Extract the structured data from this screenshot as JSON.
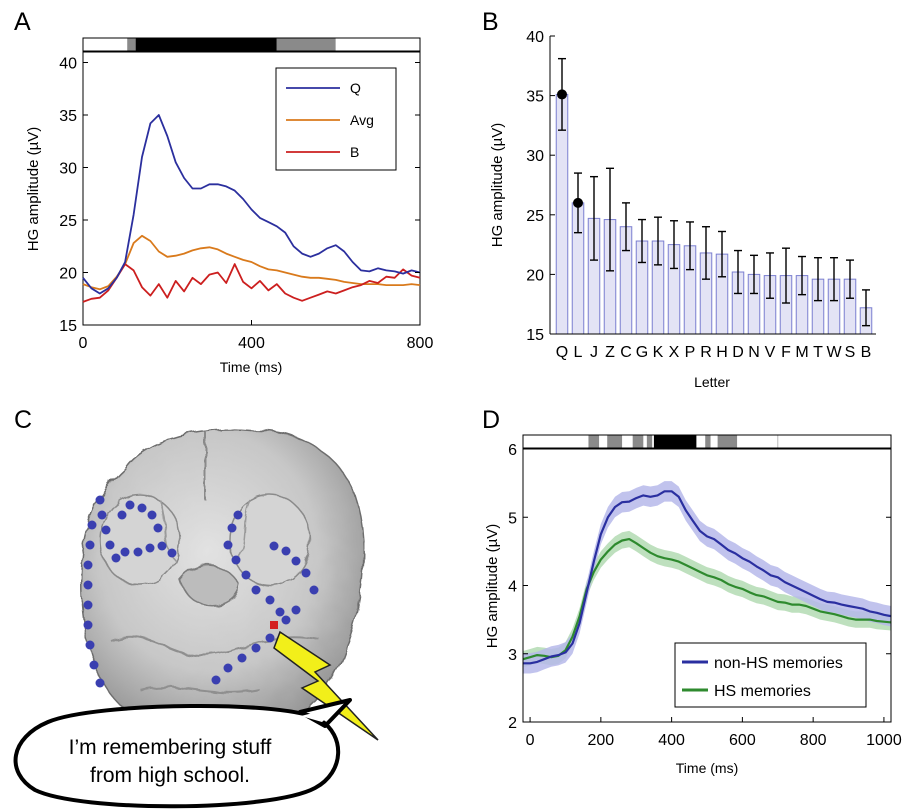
{
  "panels": {
    "A": "A",
    "B": "B",
    "C": "C",
    "D": "D"
  },
  "colors": {
    "q_line": "#2b2f9e",
    "avg_line": "#d97a1c",
    "b_line": "#cc1f1f",
    "bar_fill": "#e3e3f5",
    "bar_stroke": "#7b7fd0",
    "nonhs_line": "#2a2fa0",
    "nonhs_band": "#b6b8ea",
    "hs_line": "#2e8a2e",
    "hs_band": "#b3dab3",
    "electrode": "#3a3fb0",
    "electrode_active": "#d42020",
    "bolt": "#f2ef1a"
  },
  "chart_data": [
    {
      "panel": "A",
      "type": "line",
      "title": "",
      "xlabel": "Time (ms)",
      "ylabel": "HG amplitude (µV)",
      "xlim": [
        0,
        800
      ],
      "ylim": [
        15,
        41
      ],
      "xticks": [
        0,
        400,
        800
      ],
      "yticks": [
        15,
        20,
        25,
        30,
        35,
        40
      ],
      "grid": false,
      "legend_position": "top-right",
      "significance_bar": [
        {
          "start": 0,
          "end": 105,
          "shade": "none"
        },
        {
          "start": 105,
          "end": 125,
          "shade": "gray"
        },
        {
          "start": 125,
          "end": 460,
          "shade": "black"
        },
        {
          "start": 460,
          "end": 600,
          "shade": "gray"
        },
        {
          "start": 600,
          "end": 800,
          "shade": "none"
        }
      ],
      "series": [
        {
          "name": "Q",
          "x": [
            0,
            20,
            40,
            60,
            80,
            100,
            120,
            140,
            160,
            180,
            200,
            220,
            240,
            260,
            280,
            300,
            320,
            340,
            360,
            380,
            400,
            420,
            440,
            460,
            480,
            500,
            520,
            540,
            560,
            580,
            600,
            620,
            640,
            660,
            680,
            700,
            720,
            740,
            760,
            780,
            800
          ],
          "y": [
            19.5,
            18.5,
            18.0,
            18.5,
            19.5,
            21.0,
            25.5,
            31.0,
            34.2,
            35.0,
            33.0,
            30.5,
            29.0,
            28.0,
            28.0,
            28.4,
            28.4,
            28.2,
            27.8,
            27.0,
            26.0,
            25.2,
            24.8,
            24.4,
            23.8,
            22.5,
            21.8,
            21.5,
            21.8,
            22.3,
            22.6,
            22.0,
            21.0,
            20.2,
            20.1,
            20.4,
            20.2,
            20.1,
            19.9,
            20.2,
            20.0
          ]
        },
        {
          "name": "Avg",
          "x": [
            0,
            20,
            40,
            60,
            80,
            100,
            120,
            140,
            160,
            180,
            200,
            220,
            240,
            260,
            280,
            300,
            320,
            340,
            360,
            380,
            400,
            420,
            440,
            460,
            480,
            500,
            520,
            540,
            560,
            580,
            600,
            620,
            640,
            660,
            680,
            700,
            720,
            740,
            760,
            780,
            800
          ],
          "y": [
            18.9,
            18.6,
            18.4,
            18.7,
            19.6,
            20.8,
            22.8,
            23.5,
            23.0,
            22.0,
            21.5,
            21.6,
            21.8,
            22.1,
            22.3,
            22.4,
            22.2,
            21.8,
            21.5,
            21.2,
            21.0,
            20.6,
            20.3,
            20.2,
            20.0,
            19.8,
            19.6,
            19.5,
            19.5,
            19.4,
            19.3,
            19.1,
            19.0,
            18.9,
            18.9,
            18.9,
            18.8,
            18.8,
            18.8,
            18.9,
            18.8
          ]
        },
        {
          "name": "B",
          "x": [
            0,
            20,
            40,
            60,
            80,
            100,
            120,
            140,
            160,
            180,
            200,
            220,
            240,
            260,
            280,
            300,
            320,
            340,
            360,
            380,
            400,
            420,
            440,
            460,
            480,
            500,
            520,
            540,
            560,
            580,
            600,
            620,
            640,
            660,
            680,
            700,
            720,
            740,
            760,
            780,
            800
          ],
          "y": [
            17.2,
            17.5,
            17.6,
            18.3,
            19.5,
            20.8,
            20.2,
            18.6,
            17.8,
            18.9,
            17.6,
            19.2,
            18.2,
            19.5,
            18.9,
            19.8,
            20.0,
            19.0,
            20.8,
            19.1,
            18.5,
            19.2,
            18.3,
            18.9,
            18.0,
            17.6,
            17.3,
            17.6,
            17.9,
            18.2,
            18.0,
            18.3,
            18.6,
            18.8,
            19.2,
            19.0,
            19.6,
            19.5,
            20.3,
            19.7,
            19.5
          ]
        }
      ]
    },
    {
      "panel": "B",
      "type": "bar",
      "title": "",
      "xlabel": "Letter",
      "ylabel": "HG amplitude (µV)",
      "ylim": [
        15,
        40
      ],
      "yticks": [
        15,
        20,
        25,
        30,
        35,
        40
      ],
      "grid": false,
      "categories": [
        "Q",
        "L",
        "J",
        "Z",
        "C",
        "G",
        "K",
        "X",
        "P",
        "R",
        "H",
        "D",
        "N",
        "V",
        "F",
        "M",
        "T",
        "W",
        "S",
        "B"
      ],
      "values": [
        35.1,
        26.0,
        24.7,
        24.6,
        24.0,
        22.8,
        22.8,
        22.5,
        22.4,
        21.8,
        21.7,
        20.2,
        20.0,
        19.9,
        19.9,
        19.9,
        19.6,
        19.6,
        19.6,
        17.2
      ],
      "error": [
        3.0,
        2.5,
        3.5,
        4.3,
        2.0,
        1.8,
        2.0,
        2.0,
        2.0,
        2.2,
        1.9,
        1.8,
        1.6,
        1.9,
        2.3,
        1.6,
        1.8,
        1.8,
        1.6,
        1.5
      ],
      "highlighted": [
        "Q",
        "L"
      ]
    },
    {
      "panel": "D",
      "type": "line",
      "title": "",
      "xlabel": "Time (ms)",
      "ylabel": "HG amplitude (µV)",
      "xlim": [
        -20,
        1020
      ],
      "ylim": [
        2,
        6
      ],
      "xticks": [
        0,
        200,
        400,
        600,
        800,
        1000
      ],
      "yticks": [
        2,
        3,
        4,
        5,
        6
      ],
      "grid": false,
      "legend_position": "bottom-right",
      "significance_bar": [
        {
          "start": 165,
          "end": 195,
          "shade": "gray"
        },
        {
          "start": 218,
          "end": 260,
          "shade": "gray"
        },
        {
          "start": 290,
          "end": 320,
          "shade": "gray"
        },
        {
          "start": 330,
          "end": 345,
          "shade": "gray"
        },
        {
          "start": 350,
          "end": 470,
          "shade": "black"
        },
        {
          "start": 495,
          "end": 510,
          "shade": "gray"
        },
        {
          "start": 530,
          "end": 585,
          "shade": "gray"
        }
      ],
      "series": [
        {
          "name": "non-HS memories",
          "x": [
            -20,
            0,
            20,
            40,
            60,
            80,
            100,
            120,
            140,
            160,
            180,
            200,
            220,
            240,
            260,
            280,
            300,
            320,
            340,
            360,
            380,
            400,
            420,
            440,
            460,
            480,
            500,
            520,
            540,
            560,
            580,
            600,
            620,
            640,
            660,
            680,
            700,
            720,
            740,
            760,
            780,
            800,
            820,
            840,
            860,
            880,
            900,
            920,
            940,
            960,
            980,
            1000,
            1020
          ],
          "y": [
            2.86,
            2.86,
            2.88,
            2.92,
            2.96,
            2.98,
            3.02,
            3.15,
            3.45,
            3.9,
            4.35,
            4.75,
            5.0,
            5.15,
            5.22,
            5.23,
            5.28,
            5.32,
            5.3,
            5.32,
            5.38,
            5.38,
            5.3,
            5.1,
            4.95,
            4.8,
            4.72,
            4.68,
            4.6,
            4.52,
            4.47,
            4.4,
            4.35,
            4.28,
            4.22,
            4.15,
            4.12,
            4.05,
            4.0,
            3.95,
            3.9,
            3.85,
            3.8,
            3.76,
            3.75,
            3.72,
            3.7,
            3.68,
            3.66,
            3.62,
            3.6,
            3.57,
            3.55
          ],
          "err": 0.15
        },
        {
          "name": "HS memories",
          "x": [
            -20,
            0,
            20,
            40,
            60,
            80,
            100,
            120,
            140,
            160,
            180,
            200,
            220,
            240,
            260,
            280,
            300,
            320,
            340,
            360,
            380,
            400,
            420,
            440,
            460,
            480,
            500,
            520,
            540,
            560,
            580,
            600,
            620,
            640,
            660,
            680,
            700,
            720,
            740,
            760,
            780,
            800,
            820,
            840,
            860,
            880,
            900,
            920,
            940,
            960,
            980,
            1000,
            1020
          ],
          "y": [
            2.92,
            2.95,
            2.98,
            2.97,
            2.95,
            2.97,
            3.05,
            3.25,
            3.55,
            3.95,
            4.2,
            4.38,
            4.5,
            4.6,
            4.66,
            4.68,
            4.62,
            4.55,
            4.48,
            4.43,
            4.4,
            4.38,
            4.35,
            4.3,
            4.25,
            4.2,
            4.15,
            4.12,
            4.08,
            4.02,
            3.98,
            3.95,
            3.9,
            3.86,
            3.84,
            3.8,
            3.76,
            3.75,
            3.72,
            3.72,
            3.7,
            3.66,
            3.62,
            3.6,
            3.58,
            3.55,
            3.52,
            3.5,
            3.5,
            3.5,
            3.48,
            3.47,
            3.46
          ],
          "err": 0.12
        }
      ]
    }
  ],
  "brain": {
    "speech_text_line1": "I’m remembering stuff",
    "speech_text_line2": "from high school.",
    "electrode_icon": "dot",
    "active_electrode_icon": "square"
  }
}
